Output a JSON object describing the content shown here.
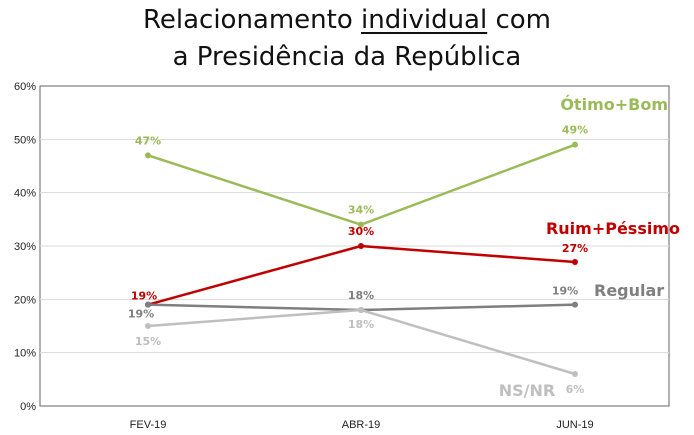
{
  "header": {
    "title_pre": "Relacionamento ",
    "title_underlined": "individual",
    "title_post": " com",
    "title_line2": "a Presidência da República"
  },
  "chart_data": {
    "type": "line",
    "title": "Relacionamento individual com a Presidência da República",
    "xlabel": "",
    "ylabel": "",
    "categories": [
      "FEV-19",
      "ABR-19",
      "JUN-19"
    ],
    "ylim": [
      0,
      60
    ],
    "yticks": [
      "0%",
      "10%",
      "20%",
      "30%",
      "40%",
      "50%",
      "60%"
    ],
    "grid": true,
    "series": [
      {
        "name": "Ótimo+Bom",
        "color": "#9bbb59",
        "values": [
          47,
          34,
          49
        ],
        "labels": [
          "47%",
          "34%",
          "49%"
        ]
      },
      {
        "name": "Ruim+Péssimo",
        "color": "#c00000",
        "values": [
          19,
          30,
          27
        ],
        "labels": [
          "19%",
          "30%",
          "27%"
        ]
      },
      {
        "name": "Regular",
        "color": "#7f7f7f",
        "values": [
          19,
          18,
          19
        ],
        "labels": [
          "19%",
          "18%",
          "19%"
        ]
      },
      {
        "name": "NS/NR",
        "color": "#bfbfbf",
        "values": [
          15,
          18,
          6
        ],
        "labels": [
          "15%",
          "18%",
          "6%"
        ]
      }
    ]
  }
}
